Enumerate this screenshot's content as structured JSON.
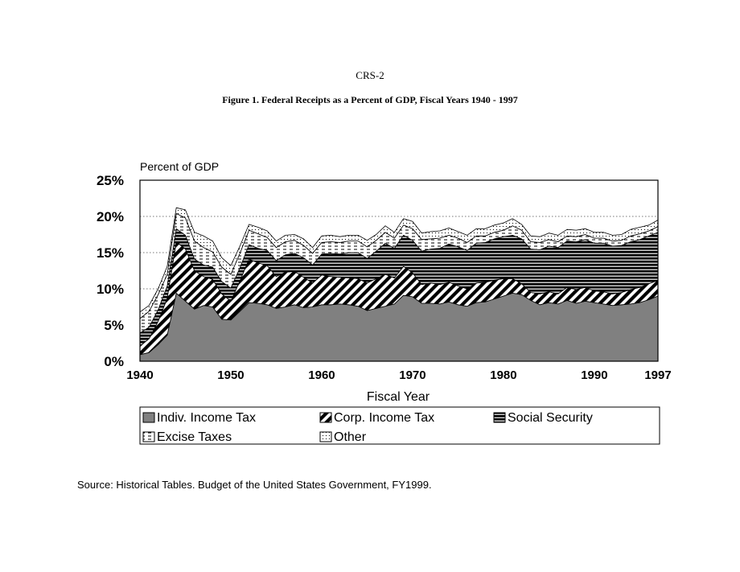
{
  "page": {
    "header": "CRS-2",
    "figure_title": "Figure 1.  Federal Receipts as a Percent of GDP, Fiscal Years 1940 - 1997",
    "source": "Source:  Historical Tables.  Budget of the United States Government, FY1999."
  },
  "chart_data": {
    "type": "area",
    "stacked": true,
    "ylabel": "Percent of GDP",
    "xlabel": "Fiscal Year",
    "xlim": [
      1940,
      1997
    ],
    "ylim": [
      0,
      25
    ],
    "y_ticks": [
      "0%",
      "5%",
      "10%",
      "15%",
      "20%",
      "25%"
    ],
    "x_ticks": [
      "1940",
      "1950",
      "1960",
      "1970",
      "1980",
      "1990",
      "1997"
    ],
    "gridlines": [
      5,
      10,
      15,
      20
    ],
    "legend_position": "bottom",
    "x": [
      1940,
      1941,
      1942,
      1943,
      1944,
      1945,
      1946,
      1947,
      1948,
      1949,
      1950,
      1951,
      1952,
      1953,
      1954,
      1955,
      1956,
      1957,
      1958,
      1959,
      1960,
      1961,
      1962,
      1963,
      1964,
      1965,
      1966,
      1967,
      1968,
      1969,
      1970,
      1971,
      1972,
      1973,
      1974,
      1975,
      1976,
      1977,
      1978,
      1979,
      1980,
      1981,
      1982,
      1983,
      1984,
      1985,
      1986,
      1987,
      1988,
      1989,
      1990,
      1991,
      1992,
      1993,
      1994,
      1995,
      1996,
      1997
    ],
    "series": [
      {
        "name": "Indiv. Income Tax",
        "color": "#808080",
        "pattern": "solid",
        "values": [
          0.9,
          1.2,
          2.3,
          3.6,
          9.4,
          8.3,
          7.2,
          7.7,
          7.5,
          5.8,
          5.7,
          6.9,
          8.1,
          8.0,
          7.8,
          7.3,
          7.5,
          7.8,
          7.4,
          7.5,
          7.8,
          7.8,
          7.9,
          7.8,
          7.6,
          7.0,
          7.3,
          7.6,
          7.9,
          9.1,
          8.9,
          8.0,
          8.0,
          7.9,
          8.2,
          7.8,
          7.6,
          8.1,
          8.2,
          8.6,
          9.0,
          9.4,
          9.2,
          8.4,
          7.8,
          8.1,
          7.9,
          8.4,
          8.0,
          8.3,
          8.1,
          7.9,
          7.7,
          7.8,
          7.9,
          8.1,
          8.5,
          9.0
        ]
      },
      {
        "name": "Corp. Income Tax",
        "color": "#000000",
        "pattern": "diagonal",
        "values": [
          1.2,
          1.9,
          3.2,
          5.1,
          7.1,
          7.2,
          5.3,
          4.0,
          3.8,
          3.5,
          2.6,
          4.2,
          6.0,
          5.6,
          5.4,
          4.4,
          4.8,
          4.6,
          4.2,
          3.3,
          4.1,
          3.9,
          3.7,
          3.7,
          3.8,
          3.8,
          4.1,
          4.4,
          3.6,
          4.0,
          3.3,
          2.6,
          2.8,
          2.7,
          2.7,
          2.6,
          2.4,
          2.7,
          2.7,
          2.6,
          2.4,
          2.0,
          1.5,
          1.1,
          1.5,
          1.5,
          1.4,
          1.8,
          1.9,
          1.9,
          1.6,
          1.7,
          1.6,
          1.7,
          2.0,
          2.1,
          2.2,
          2.2
        ]
      },
      {
        "name": "Social Security",
        "color": "#000000",
        "pattern": "horizontal",
        "values": [
          1.8,
          1.6,
          1.6,
          1.7,
          1.8,
          1.9,
          1.6,
          1.6,
          1.7,
          1.7,
          1.8,
          1.8,
          2.0,
          2.0,
          2.1,
          2.2,
          2.4,
          2.5,
          2.7,
          2.5,
          2.9,
          3.2,
          3.2,
          3.5,
          3.6,
          3.4,
          3.8,
          4.3,
          4.1,
          4.3,
          4.5,
          4.6,
          4.7,
          5.0,
          5.3,
          5.4,
          5.3,
          5.5,
          5.5,
          5.7,
          5.8,
          6.0,
          6.2,
          6.0,
          6.1,
          6.3,
          6.4,
          6.4,
          6.6,
          6.6,
          6.6,
          6.7,
          6.6,
          6.5,
          6.6,
          6.6,
          6.6,
          6.6
        ]
      },
      {
        "name": "Excise Taxes",
        "color": "#ffffff",
        "pattern": "dashed",
        "values": [
          2.0,
          2.2,
          2.1,
          1.6,
          2.1,
          2.4,
          2.5,
          2.4,
          2.1,
          2.0,
          1.9,
          2.0,
          2.0,
          2.0,
          1.8,
          1.8,
          1.8,
          1.8,
          1.7,
          1.6,
          1.6,
          1.6,
          1.6,
          1.6,
          1.6,
          1.6,
          1.5,
          1.5,
          1.4,
          1.4,
          1.6,
          1.6,
          1.4,
          1.4,
          1.2,
          1.2,
          1.1,
          1.0,
          0.9,
          0.9,
          0.9,
          1.3,
          1.2,
          1.0,
          1.0,
          0.9,
          0.8,
          0.7,
          0.7,
          0.7,
          0.7,
          0.7,
          0.7,
          0.7,
          0.8,
          0.8,
          0.7,
          0.8
        ]
      },
      {
        "name": "Other",
        "color": "#ffffff",
        "pattern": "dotted",
        "values": [
          0.9,
          0.8,
          0.8,
          1.1,
          0.8,
          1.1,
          1.2,
          1.6,
          1.5,
          1.3,
          1.2,
          1.0,
          0.8,
          0.9,
          0.9,
          0.9,
          0.9,
          0.8,
          0.9,
          0.8,
          0.9,
          0.9,
          0.8,
          0.8,
          0.8,
          0.9,
          0.8,
          0.9,
          0.8,
          0.9,
          1.0,
          0.9,
          1.0,
          1.0,
          1.0,
          0.9,
          1.0,
          1.0,
          1.0,
          1.0,
          1.0,
          1.0,
          0.8,
          0.8,
          0.8,
          0.9,
          0.9,
          0.9,
          0.9,
          0.8,
          0.8,
          0.8,
          0.8,
          0.8,
          0.9,
          0.9,
          0.8,
          0.9
        ]
      }
    ]
  }
}
